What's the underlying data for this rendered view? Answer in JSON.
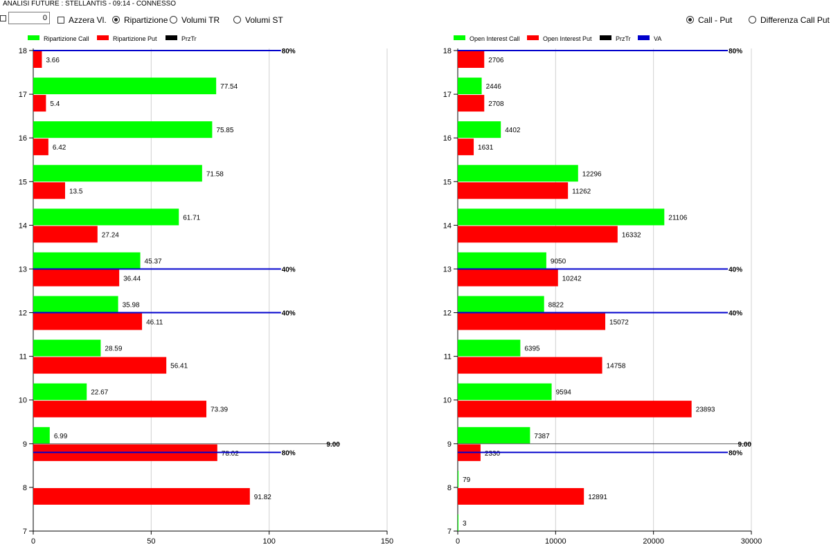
{
  "header": {
    "title": "ANALISI FUTURE : STELLANTIS - 09:14 - CONNESSO"
  },
  "controls": {
    "number_value": "0",
    "azzera_label": "Azzera Vl.",
    "radio_left": [
      {
        "label": "Ripartizione",
        "checked": true
      },
      {
        "label": "Volumi TR",
        "checked": false
      },
      {
        "label": "Volumi ST",
        "checked": false
      }
    ],
    "radio_right": [
      {
        "label": "Call - Put",
        "checked": true
      },
      {
        "label": "Differenza Call Put",
        "checked": false
      }
    ]
  },
  "colors": {
    "call": "#00ff00",
    "put": "#ff0000",
    "prztr": "#000000",
    "va": "#0000cc",
    "grid": "#d0d0d0"
  },
  "chart_data": [
    {
      "type": "bar",
      "orientation": "horizontal",
      "legend": [
        "Ripartizione Call",
        "Ripartizione Put",
        "PrzTr"
      ],
      "legend_placement": "top-left",
      "categories": [
        7,
        8,
        9,
        10,
        11,
        12,
        13,
        14,
        15,
        16,
        17,
        18
      ],
      "xlim": [
        0,
        150
      ],
      "ylim": [
        7,
        18
      ],
      "xticks": [
        0,
        50,
        100,
        150
      ],
      "series": [
        {
          "name": "Ripartizione Call",
          "values": [
            null,
            null,
            6.99,
            22.67,
            28.59,
            35.98,
            45.37,
            61.71,
            71.58,
            75.85,
            77.54,
            null
          ],
          "labels": [
            "",
            "",
            "6.99",
            "22.67",
            "28.59",
            "35.98",
            "45.37",
            "61.71",
            "71.58",
            "75.85",
            "77.54",
            ""
          ]
        },
        {
          "name": "Ripartizione Put",
          "values": [
            null,
            91.82,
            78.02,
            73.39,
            56.41,
            46.11,
            36.44,
            27.24,
            13.5,
            6.42,
            5.4,
            3.66
          ],
          "labels": [
            "",
            "91.82",
            "78.02",
            "73.39",
            "56.41",
            "46.11",
            "36.44",
            "27.24",
            "13.5",
            "6.42",
            "5.4",
            "3.66"
          ]
        }
      ],
      "prztr": {
        "value": 9.0,
        "label": "9.00",
        "x_end": 130
      },
      "va_lines": [
        {
          "y": 18.0,
          "x_end": 105,
          "label": "80%"
        },
        {
          "y": 13.0,
          "x_end": 105,
          "label": "40%"
        },
        {
          "y": 12.0,
          "x_end": 105,
          "label": "40%"
        },
        {
          "y": 8.8,
          "x_end": 105,
          "label": "80%"
        }
      ]
    },
    {
      "type": "bar",
      "orientation": "horizontal",
      "legend": [
        "Open Interest Call",
        "Open Interest Put",
        "PrzTr",
        "VA"
      ],
      "legend_placement": "top-left",
      "categories": [
        7,
        8,
        9,
        10,
        11,
        12,
        13,
        14,
        15,
        16,
        17,
        18
      ],
      "xlim": [
        0,
        30000
      ],
      "ylim": [
        7,
        18
      ],
      "xticks": [
        0,
        10000,
        20000,
        30000
      ],
      "series": [
        {
          "name": "Open Interest Call",
          "values": [
            3,
            79,
            7387,
            9594,
            6395,
            8822,
            9050,
            21106,
            12296,
            4402,
            2446,
            null
          ],
          "labels": [
            "3",
            "79",
            "7387",
            "9594",
            "6395",
            "8822",
            "9050",
            "21106",
            "12296",
            "4402",
            "2446",
            ""
          ]
        },
        {
          "name": "Open Interest Put",
          "values": [
            null,
            12891,
            2330,
            23893,
            14758,
            15072,
            10242,
            16332,
            11262,
            1631,
            2708,
            2706
          ],
          "labels": [
            "",
            "12891",
            "2330",
            "23893",
            "14758",
            "15072",
            "10242",
            "16332",
            "11262",
            "1631",
            "2708",
            "2706"
          ]
        }
      ],
      "prztr": {
        "value": 9.0,
        "label": "9.00",
        "x_end": 30000
      },
      "va_lines": [
        {
          "y": 18.0,
          "x_end": 27600,
          "label": "80%"
        },
        {
          "y": 13.0,
          "x_end": 27600,
          "label": "40%"
        },
        {
          "y": 12.0,
          "x_end": 27600,
          "label": "40%"
        },
        {
          "y": 8.8,
          "x_end": 27600,
          "label": "80%"
        }
      ]
    }
  ]
}
